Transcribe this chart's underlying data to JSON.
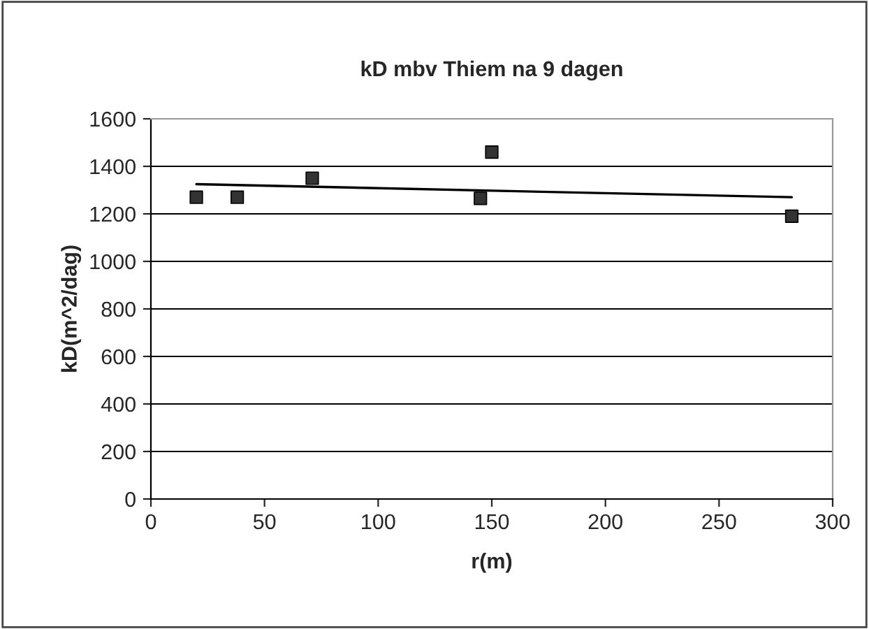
{
  "chart_data": {
    "type": "scatter",
    "title": "kD mbv Thiem na 9 dagen",
    "xlabel": "r(m)",
    "ylabel": "kD(m^2/dag)",
    "series": [
      {
        "color": "#333333",
        "marker": "square",
        "x": [
          20,
          38,
          71,
          145,
          150,
          282
        ],
        "values": [
          1270,
          1270,
          1350,
          1265,
          1460,
          1190
        ]
      },
      {
        "type": "line",
        "color": "#000000",
        "marker": "none",
        "x": [
          20,
          282
        ],
        "values": [
          1325,
          1270
        ]
      }
    ],
    "xlim": [
      0,
      300
    ],
    "xticks": [
      0,
      50,
      100,
      150,
      200,
      250,
      300
    ],
    "ylim": [
      0,
      1600
    ],
    "yticks": [
      0,
      200,
      400,
      600,
      800,
      1000,
      1200,
      1400,
      1600
    ],
    "grid": "y",
    "legend": false
  }
}
